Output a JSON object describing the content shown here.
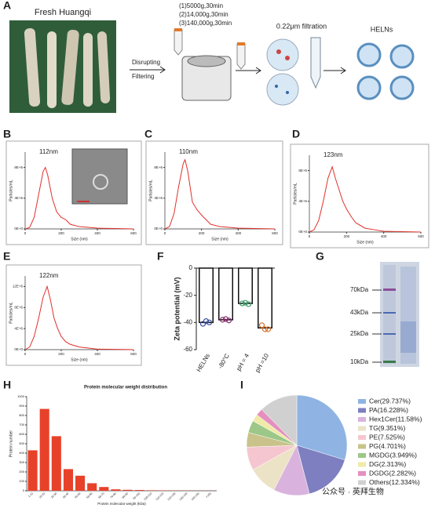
{
  "panel_labels": [
    "A",
    "B",
    "C",
    "D",
    "E",
    "F",
    "G",
    "H",
    "I"
  ],
  "workflow": {
    "photo_title": "Fresh Huangqi",
    "step1": "Disrupting",
    "step2": "Filtering",
    "spins": [
      "(1)5000g,30min",
      "(2)14,000g,30min",
      "(3)140,000g,30min"
    ],
    "filtration": "0.22μm filtration",
    "product": "HELNs"
  },
  "gel": {
    "ladder": [
      "70kDa",
      "43kDa",
      "25kDa",
      "10kDa"
    ]
  },
  "watermark": "公众号 · 英拜生物",
  "chart_data": [
    {
      "type": "line",
      "annotation": "112nm",
      "xlabel": "Size (nm)",
      "ylabel": "Particles/mL",
      "color": "#e0302a",
      "x": [
        0,
        25,
        50,
        75,
        100,
        112,
        125,
        150,
        175,
        200,
        225,
        250,
        300,
        350,
        400,
        500,
        600
      ],
      "values": [
        0,
        0.2,
        1.5,
        4.5,
        7.5,
        8,
        7,
        4,
        2.2,
        1.5,
        1.2,
        0.6,
        0.3,
        0.2,
        0.1,
        0.05,
        0
      ],
      "xlim": [
        0,
        600
      ],
      "xticks": [
        0,
        200,
        400,
        600
      ],
      "ylim": [
        0,
        10
      ],
      "yticks": [
        {
          "value": 0,
          "label": "0E+0"
        },
        {
          "value": 4,
          "label": "4E+6"
        },
        {
          "value": 8,
          "label": "8E+6"
        }
      ]
    },
    {
      "type": "line",
      "annotation": "110nm",
      "xlabel": "Size (nm)",
      "ylabel": "Particles/mL",
      "color": "#e0302a",
      "x": [
        0,
        25,
        50,
        75,
        100,
        110,
        125,
        150,
        175,
        200,
        225,
        250,
        300,
        350,
        400,
        500,
        600
      ],
      "values": [
        0,
        0.3,
        2,
        5.5,
        8.5,
        9,
        7.5,
        3.5,
        2.5,
        1.8,
        1.2,
        0.6,
        0.3,
        0.2,
        0.1,
        0.05,
        0
      ],
      "xlim": [
        0,
        600
      ],
      "xticks": [
        0,
        200,
        400,
        600
      ],
      "ylim": [
        0,
        10
      ],
      "yticks": [
        {
          "value": 0,
          "label": "0E+0"
        },
        {
          "value": 4,
          "label": "4E+6"
        },
        {
          "value": 8,
          "label": "8E+6"
        }
      ]
    },
    {
      "type": "line",
      "annotation": "123nm",
      "xlabel": "Size (nm)",
      "ylabel": "Particles/mL",
      "color": "#e0302a",
      "x": [
        0,
        25,
        50,
        75,
        100,
        123,
        140,
        160,
        180,
        200,
        225,
        250,
        300,
        350,
        400,
        500,
        600
      ],
      "values": [
        0,
        0.3,
        1.5,
        4,
        7,
        8.5,
        7,
        5.5,
        4,
        3,
        2,
        1.2,
        0.5,
        0.3,
        0.1,
        0.05,
        0
      ],
      "xlim": [
        0,
        600
      ],
      "xticks": [
        0,
        200,
        400,
        600
      ],
      "ylim": [
        0,
        10
      ],
      "yticks": [
        {
          "value": 0,
          "label": "0E+0"
        },
        {
          "value": 4,
          "label": "4E+6"
        },
        {
          "value": 8,
          "label": "8E+6"
        }
      ]
    },
    {
      "type": "line",
      "annotation": "122nm",
      "xlabel": "Size (nm)",
      "ylabel": "Particles/mL",
      "color": "#e0302a",
      "x": [
        0,
        25,
        50,
        75,
        100,
        122,
        140,
        160,
        180,
        200,
        225,
        250,
        300,
        350,
        400,
        500,
        600
      ],
      "values": [
        0,
        0.5,
        2.5,
        6,
        10,
        12,
        9.5,
        6,
        4,
        2.5,
        1.5,
        1,
        0.5,
        0.3,
        0.1,
        0.05,
        0
      ],
      "xlim": [
        0,
        600
      ],
      "xticks": [
        0,
        200,
        400,
        600
      ],
      "ylim": [
        0,
        14
      ],
      "yticks": [
        {
          "value": 0,
          "label": "0E+0"
        },
        {
          "value": 4,
          "label": "4E+6"
        },
        {
          "value": 8,
          "label": "8E+6"
        },
        {
          "value": 12,
          "label": "12E+6"
        }
      ]
    },
    {
      "type": "zeta",
      "ylabel": "Zeta potential (mV)",
      "categories": [
        "HELNs",
        "-80°C",
        "pH = 4",
        "pH =10"
      ],
      "values": [
        -40,
        -38,
        -26,
        -44
      ],
      "points": [
        [
          -41,
          -39,
          -40
        ],
        [
          -38,
          -37.5,
          -38.5
        ],
        [
          -26,
          -25.5,
          -26.5
        ],
        [
          -42,
          -45,
          -45
        ]
      ],
      "colors": [
        "#3a4fa0",
        "#8a2d6e",
        "#3a9a6a",
        "#d8702a"
      ],
      "ylim": [
        -60,
        0
      ],
      "yticks": [
        -60,
        -40,
        -20,
        0
      ]
    },
    {
      "type": "bar",
      "title": "Protein molecular weight distribution",
      "xlabel": "Protein molecular weight (kDa)",
      "ylabel": "Protein number",
      "color": "#e8412a",
      "categories": [
        "1-10",
        "10-20",
        "20-30",
        "30-40",
        "40-50",
        "50-60",
        "60-70",
        "70-80",
        "80-90",
        "90-100",
        "100-110",
        "110-120",
        "120-130",
        "130-140",
        "140-150",
        ">150"
      ],
      "values": [
        430,
        870,
        580,
        230,
        160,
        80,
        40,
        15,
        10,
        8,
        5,
        4,
        3,
        2,
        1,
        1
      ],
      "ylim": [
        0,
        1000
      ],
      "yticks": [
        0,
        100,
        200,
        300,
        400,
        500,
        600,
        700,
        800,
        900,
        1000
      ]
    },
    {
      "type": "pie",
      "categories": [
        "Cer(29.737%)",
        "PA(16.228%)",
        "Hex1Cer(11.58%)",
        "TG(9.351%)",
        "PE(7.525%)",
        "PG(4.701%)",
        "MGDG(3.949%)",
        "DG(2.313%)",
        "DGDG(2.282%)",
        "Others(12.334%)"
      ],
      "values": [
        29.737,
        16.228,
        11.58,
        9.351,
        7.525,
        4.701,
        3.949,
        2.313,
        2.282,
        12.334
      ],
      "colors": [
        "#8fb4e3",
        "#7d7fc0",
        "#d9b3dd",
        "#ece2c6",
        "#f5c6cf",
        "#c9c28a",
        "#9cc788",
        "#f0eaa8",
        "#e58fbf",
        "#d0d0d0"
      ]
    }
  ]
}
